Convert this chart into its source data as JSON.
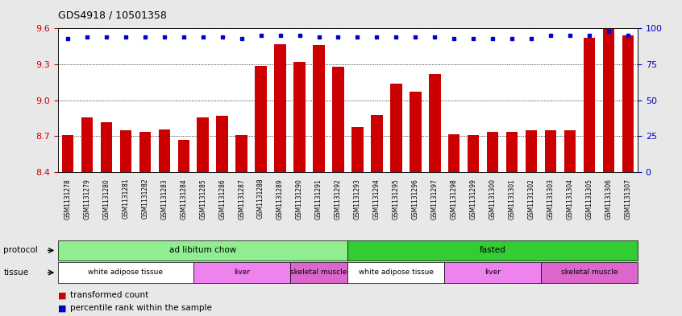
{
  "title": "GDS4918 / 10501358",
  "samples": [
    "GSM1131278",
    "GSM1131279",
    "GSM1131280",
    "GSM1131281",
    "GSM1131282",
    "GSM1131283",
    "GSM1131284",
    "GSM1131285",
    "GSM1131286",
    "GSM1131287",
    "GSM1131288",
    "GSM1131289",
    "GSM1131290",
    "GSM1131291",
    "GSM1131292",
    "GSM1131293",
    "GSM1131294",
    "GSM1131295",
    "GSM1131296",
    "GSM1131297",
    "GSM1131298",
    "GSM1131299",
    "GSM1131300",
    "GSM1131301",
    "GSM1131302",
    "GSM1131303",
    "GSM1131304",
    "GSM1131305",
    "GSM1131306",
    "GSM1131307"
  ],
  "bar_values": [
    8.71,
    8.86,
    8.82,
    8.75,
    8.74,
    8.76,
    8.67,
    8.86,
    8.87,
    8.71,
    9.29,
    9.47,
    9.32,
    9.46,
    9.28,
    8.78,
    8.88,
    9.14,
    9.07,
    9.22,
    8.72,
    8.71,
    8.74,
    8.74,
    8.75,
    8.75,
    8.75,
    9.52,
    9.6,
    9.54
  ],
  "percentile_values": [
    93,
    94,
    94,
    94,
    94,
    94,
    94,
    94,
    94,
    93,
    95,
    95,
    95,
    94,
    94,
    94,
    94,
    94,
    94,
    94,
    93,
    93,
    93,
    93,
    93,
    95,
    95,
    95,
    98,
    95
  ],
  "ylim_left": [
    8.4,
    9.6
  ],
  "ylim_right": [
    0,
    100
  ],
  "yticks_left": [
    8.4,
    8.7,
    9.0,
    9.3,
    9.6
  ],
  "yticks_right": [
    0,
    25,
    50,
    75,
    100
  ],
  "bar_color": "#cc0000",
  "dot_color": "#0000cc",
  "background_color": "#e8e8e8",
  "plot_bg_color": "#ffffff",
  "protocol_groups": [
    {
      "label": "ad libitum chow",
      "start": 0,
      "end": 14,
      "color": "#90ee90"
    },
    {
      "label": "fasted",
      "start": 15,
      "end": 29,
      "color": "#33cc33"
    }
  ],
  "tissue_groups": [
    {
      "label": "white adipose tissue",
      "start": 0,
      "end": 6,
      "color": "#ffffff"
    },
    {
      "label": "liver",
      "start": 7,
      "end": 11,
      "color": "#ee82ee"
    },
    {
      "label": "skeletal muscle",
      "start": 12,
      "end": 14,
      "color": "#dd66cc"
    },
    {
      "label": "white adipose tissue",
      "start": 15,
      "end": 19,
      "color": "#ffffff"
    },
    {
      "label": "liver",
      "start": 20,
      "end": 24,
      "color": "#ee82ee"
    },
    {
      "label": "skeletal muscle",
      "start": 25,
      "end": 29,
      "color": "#dd66cc"
    }
  ]
}
